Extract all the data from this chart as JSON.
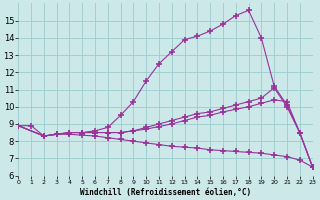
{
  "bg_color": "#cce8e8",
  "line_color": "#993399",
  "grid_color": "#99cccc",
  "xlim": [
    0,
    23
  ],
  "ylim": [
    6,
    16
  ],
  "xticks": [
    0,
    1,
    2,
    3,
    4,
    5,
    6,
    7,
    8,
    9,
    10,
    11,
    12,
    13,
    14,
    15,
    16,
    17,
    18,
    19,
    20,
    21,
    22,
    23
  ],
  "yticks": [
    6,
    7,
    8,
    9,
    10,
    11,
    12,
    13,
    14,
    15
  ],
  "xlabel": "Windchill (Refroidissement éolien,°C)",
  "line1_x": [
    0,
    1,
    2,
    3,
    4,
    5,
    6,
    7,
    8,
    9,
    10,
    11,
    12,
    13,
    14,
    15,
    16,
    17,
    18,
    19,
    20,
    21,
    22,
    23
  ],
  "line1_y": [
    8.9,
    8.9,
    8.3,
    8.4,
    8.5,
    8.5,
    8.6,
    8.8,
    9.5,
    10.3,
    11.5,
    12.5,
    13.2,
    13.9,
    14.1,
    14.4,
    14.8,
    15.3,
    15.6,
    14.0,
    11.2,
    10.1,
    8.5,
    6.5
  ],
  "line2_x": [
    0,
    2,
    3,
    4,
    5,
    6,
    7,
    8,
    9,
    10,
    11,
    12,
    13,
    14,
    15,
    16,
    17,
    18,
    19,
    20,
    21,
    22,
    23
  ],
  "line2_y": [
    8.9,
    8.3,
    8.4,
    8.5,
    8.5,
    8.5,
    8.5,
    8.5,
    8.6,
    8.8,
    9.0,
    9.2,
    9.4,
    9.6,
    9.7,
    9.9,
    10.1,
    10.3,
    10.5,
    11.1,
    10.0,
    8.5,
    6.5
  ],
  "line3_x": [
    0,
    2,
    3,
    4,
    5,
    6,
    7,
    8,
    9,
    10,
    11,
    12,
    13,
    14,
    15,
    16,
    17,
    18,
    19,
    20,
    21,
    22,
    23
  ],
  "line3_y": [
    8.9,
    8.3,
    8.4,
    8.4,
    8.35,
    8.3,
    8.2,
    8.1,
    8.0,
    7.9,
    7.8,
    7.7,
    7.65,
    7.6,
    7.5,
    7.45,
    7.4,
    7.35,
    7.3,
    7.2,
    7.1,
    6.9,
    6.5
  ],
  "line4_x": [
    0,
    2,
    3,
    4,
    5,
    6,
    7,
    8,
    9,
    10,
    11,
    12,
    13,
    14,
    15,
    16,
    17,
    18,
    19,
    20,
    21,
    22,
    23
  ],
  "line4_y": [
    8.9,
    8.3,
    8.4,
    8.5,
    8.5,
    8.5,
    8.5,
    8.5,
    8.6,
    8.7,
    8.85,
    9.0,
    9.2,
    9.4,
    9.5,
    9.7,
    9.85,
    10.0,
    10.2,
    10.4,
    10.3,
    8.5,
    6.5
  ]
}
